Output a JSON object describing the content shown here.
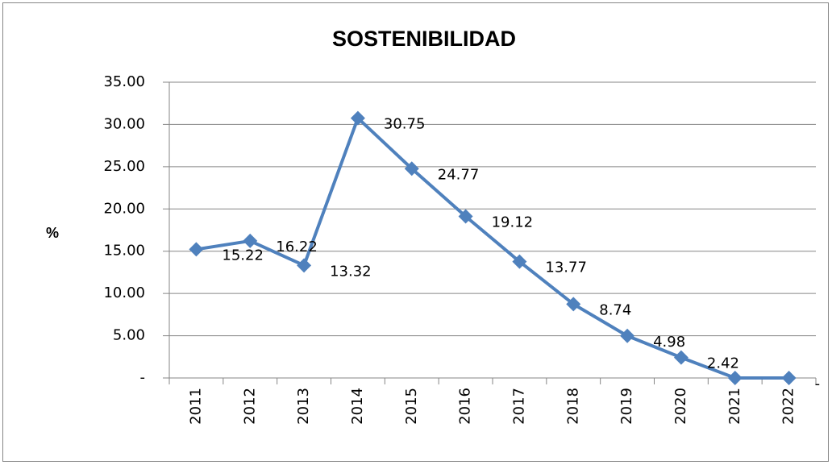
{
  "chart_data": {
    "type": "line",
    "title": "SOSTENIBILIDAD",
    "y_label": "%",
    "categories": [
      "2011",
      "2012",
      "2013",
      "2014",
      "2015",
      "2016",
      "2017",
      "2018",
      "2019",
      "2020",
      "2021",
      "2022"
    ],
    "series": [
      {
        "name": "SOSTENIBILIDAD",
        "color": "#4f81bd",
        "values": [
          15.22,
          16.22,
          13.32,
          30.75,
          24.77,
          19.12,
          13.77,
          8.74,
          4.98,
          2.42,
          0,
          0
        ],
        "value_labels": [
          "15.22",
          "16.22",
          "13.32",
          "30.75",
          "24.77",
          "19.12",
          "13.77",
          "8.74",
          "4.98",
          "2.42",
          null,
          "-"
        ]
      }
    ],
    "ylim": [
      0,
      35
    ],
    "yticks": [
      {
        "value": 0,
        "label": "-"
      },
      {
        "value": 5,
        "label": "5.00"
      },
      {
        "value": 10,
        "label": "10.00"
      },
      {
        "value": 15,
        "label": "15.00"
      },
      {
        "value": 20,
        "label": "20.00"
      },
      {
        "value": 25,
        "label": "25.00"
      },
      {
        "value": 30,
        "label": "30.00"
      },
      {
        "value": 35,
        "label": "35.00"
      }
    ],
    "grid": true
  }
}
